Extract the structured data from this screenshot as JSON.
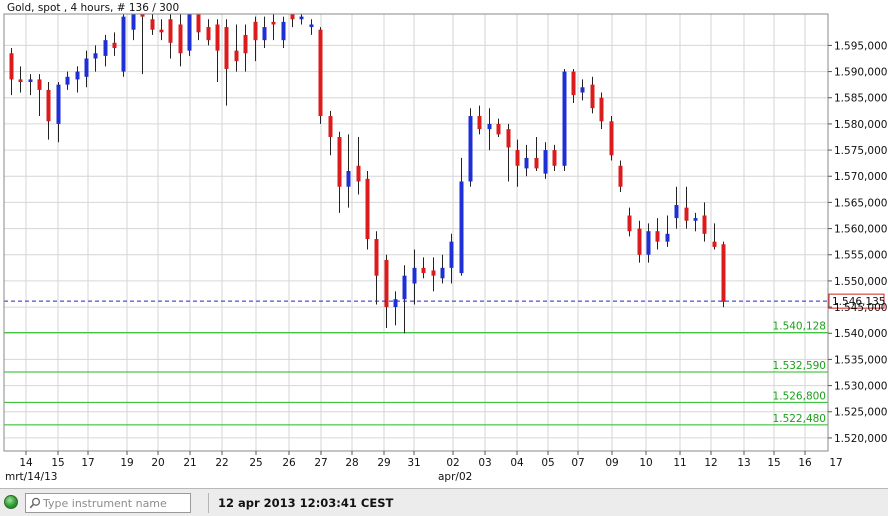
{
  "window": {
    "title": "Gold, spot , 4 hours, # 136 / 300"
  },
  "chart_data": {
    "type": "candlestick",
    "instrument": "Gold, spot",
    "timeframe": "4 hours",
    "ylim": [
      1.5175,
      1.601
    ],
    "y_ticks": [
      "1.520,000",
      "1.525,000",
      "1.530,000",
      "1.535,000",
      "1.540,000",
      "1.545,000",
      "1.550,000",
      "1.555,000",
      "1.560,000",
      "1.565,000",
      "1.570,000",
      "1.575,000",
      "1.580,000",
      "1.585,000",
      "1.590,000",
      "1.595,000"
    ],
    "y_tick_values": [
      1.52,
      1.525,
      1.53,
      1.535,
      1.54,
      1.545,
      1.55,
      1.555,
      1.56,
      1.565,
      1.57,
      1.575,
      1.58,
      1.585,
      1.59,
      1.595
    ],
    "x_tick_labels": [
      "14",
      "15",
      "17",
      "19",
      "20",
      "21",
      "22",
      "25",
      "26",
      "27",
      "28",
      "29",
      "31",
      "02",
      "03",
      "04",
      "05",
      "07",
      "09",
      "10",
      "11",
      "12",
      "13",
      "15",
      "16",
      "17"
    ],
    "x_secondary_labels": [
      "mrt/14/13",
      "apr/02"
    ],
    "grid": true,
    "current_price": {
      "label": "1.546,135",
      "value": 1.546135,
      "line_style": "dashed",
      "color": "#1c1cc8"
    },
    "horizontal_levels": [
      {
        "label": "1.540,128",
        "value": 1.540128
      },
      {
        "label": "1.532,590",
        "value": 1.53259
      },
      {
        "label": "1.526,800",
        "value": 1.5268
      },
      {
        "label": "1.522,480",
        "value": 1.52248
      }
    ],
    "candles": [
      {
        "o": 1.5935,
        "h": 1.5945,
        "l": 1.5855,
        "c": 1.5885
      },
      {
        "o": 1.5885,
        "h": 1.591,
        "l": 1.586,
        "c": 1.588
      },
      {
        "o": 1.588,
        "h": 1.5895,
        "l": 1.5855,
        "c": 1.5885
      },
      {
        "o": 1.5885,
        "h": 1.5895,
        "l": 1.5815,
        "c": 1.5865
      },
      {
        "o": 1.5865,
        "h": 1.588,
        "l": 1.577,
        "c": 1.5805
      },
      {
        "o": 1.58,
        "h": 1.588,
        "l": 1.5765,
        "c": 1.5875
      },
      {
        "o": 1.5875,
        "h": 1.59,
        "l": 1.5865,
        "c": 1.589
      },
      {
        "o": 1.5885,
        "h": 1.591,
        "l": 1.586,
        "c": 1.59
      },
      {
        "o": 1.589,
        "h": 1.594,
        "l": 1.587,
        "c": 1.5925
      },
      {
        "o": 1.5925,
        "h": 1.595,
        "l": 1.59,
        "c": 1.5935
      },
      {
        "o": 1.593,
        "h": 1.597,
        "l": 1.591,
        "c": 1.596
      },
      {
        "o": 1.5955,
        "h": 1.5975,
        "l": 1.593,
        "c": 1.5945
      },
      {
        "o": 1.59,
        "h": 1.601,
        "l": 1.589,
        "c": 1.6005
      },
      {
        "o": 1.598,
        "h": 1.601,
        "l": 1.596,
        "c": 1.601
      },
      {
        "o": 1.601,
        "h": 1.602,
        "l": 1.5895,
        "c": 1.6005
      },
      {
        "o": 1.6,
        "h": 1.601,
        "l": 1.597,
        "c": 1.598
      },
      {
        "o": 1.598,
        "h": 1.6,
        "l": 1.596,
        "c": 1.5975
      },
      {
        "o": 1.6,
        "h": 1.601,
        "l": 1.5925,
        "c": 1.5955
      },
      {
        "o": 1.599,
        "h": 1.601,
        "l": 1.591,
        "c": 1.5935
      },
      {
        "o": 1.594,
        "h": 1.601,
        "l": 1.593,
        "c": 1.601
      },
      {
        "o": 1.601,
        "h": 1.602,
        "l": 1.596,
        "c": 1.5975
      },
      {
        "o": 1.5985,
        "h": 1.6,
        "l": 1.595,
        "c": 1.596
      },
      {
        "o": 1.599,
        "h": 1.6,
        "l": 1.588,
        "c": 1.594
      },
      {
        "o": 1.5985,
        "h": 1.6,
        "l": 1.5835,
        "c": 1.5905
      },
      {
        "o": 1.594,
        "h": 1.599,
        "l": 1.59,
        "c": 1.592
      },
      {
        "o": 1.597,
        "h": 1.599,
        "l": 1.59,
        "c": 1.5935
      },
      {
        "o": 1.5995,
        "h": 1.6005,
        "l": 1.592,
        "c": 1.596
      },
      {
        "o": 1.596,
        "h": 1.6005,
        "l": 1.5945,
        "c": 1.5985
      },
      {
        "o": 1.5995,
        "h": 1.601,
        "l": 1.596,
        "c": 1.599
      },
      {
        "o": 1.596,
        "h": 1.6005,
        "l": 1.5945,
        "c": 1.5995
      },
      {
        "o": 1.601,
        "h": 1.602,
        "l": 1.5985,
        "c": 1.6
      },
      {
        "o": 1.6,
        "h": 1.601,
        "l": 1.599,
        "c": 1.6005
      },
      {
        "o": 1.5985,
        "h": 1.6,
        "l": 1.597,
        "c": 1.599
      },
      {
        "o": 1.598,
        "h": 1.5985,
        "l": 1.58,
        "c": 1.5815
      },
      {
        "o": 1.5815,
        "h": 1.5825,
        "l": 1.574,
        "c": 1.5775
      },
      {
        "o": 1.5775,
        "h": 1.5785,
        "l": 1.563,
        "c": 1.568
      },
      {
        "o": 1.568,
        "h": 1.578,
        "l": 1.564,
        "c": 1.571
      },
      {
        "o": 1.572,
        "h": 1.5775,
        "l": 1.5665,
        "c": 1.569
      },
      {
        "o": 1.5695,
        "h": 1.571,
        "l": 1.556,
        "c": 1.558
      },
      {
        "o": 1.558,
        "h": 1.5595,
        "l": 1.5455,
        "c": 1.551
      },
      {
        "o": 1.554,
        "h": 1.555,
        "l": 1.541,
        "c": 1.545
      },
      {
        "o": 1.545,
        "h": 1.548,
        "l": 1.5415,
        "c": 1.5465
      },
      {
        "o": 1.5465,
        "h": 1.553,
        "l": 1.54,
        "c": 1.551
      },
      {
        "o": 1.5495,
        "h": 1.556,
        "l": 1.5455,
        "c": 1.5525
      },
      {
        "o": 1.5525,
        "h": 1.5545,
        "l": 1.5505,
        "c": 1.5515
      },
      {
        "o": 1.552,
        "h": 1.5545,
        "l": 1.548,
        "c": 1.551
      },
      {
        "o": 1.5505,
        "h": 1.555,
        "l": 1.5495,
        "c": 1.5525
      },
      {
        "o": 1.5525,
        "h": 1.559,
        "l": 1.5495,
        "c": 1.5575
      },
      {
        "o": 1.5515,
        "h": 1.5735,
        "l": 1.551,
        "c": 1.569
      },
      {
        "o": 1.569,
        "h": 1.583,
        "l": 1.568,
        "c": 1.5815
      },
      {
        "o": 1.5815,
        "h": 1.5835,
        "l": 1.578,
        "c": 1.579
      },
      {
        "o": 1.579,
        "h": 1.583,
        "l": 1.575,
        "c": 1.58
      },
      {
        "o": 1.58,
        "h": 1.581,
        "l": 1.5775,
        "c": 1.578
      },
      {
        "o": 1.579,
        "h": 1.58,
        "l": 1.569,
        "c": 1.5755
      },
      {
        "o": 1.575,
        "h": 1.577,
        "l": 1.568,
        "c": 1.572
      },
      {
        "o": 1.5715,
        "h": 1.576,
        "l": 1.57,
        "c": 1.5735
      },
      {
        "o": 1.5735,
        "h": 1.5775,
        "l": 1.571,
        "c": 1.5715
      },
      {
        "o": 1.5705,
        "h": 1.5765,
        "l": 1.5695,
        "c": 1.575
      },
      {
        "o": 1.575,
        "h": 1.576,
        "l": 1.571,
        "c": 1.572
      },
      {
        "o": 1.572,
        "h": 1.5905,
        "l": 1.571,
        "c": 1.59
      },
      {
        "o": 1.59,
        "h": 1.5905,
        "l": 1.584,
        "c": 1.5855
      },
      {
        "o": 1.586,
        "h": 1.5885,
        "l": 1.5845,
        "c": 1.587
      },
      {
        "o": 1.5875,
        "h": 1.589,
        "l": 1.582,
        "c": 1.583
      },
      {
        "o": 1.585,
        "h": 1.586,
        "l": 1.579,
        "c": 1.5805
      },
      {
        "o": 1.5805,
        "h": 1.5815,
        "l": 1.573,
        "c": 1.574
      },
      {
        "o": 1.572,
        "h": 1.573,
        "l": 1.567,
        "c": 1.568
      },
      {
        "o": 1.5625,
        "h": 1.564,
        "l": 1.5585,
        "c": 1.5595
      },
      {
        "o": 1.56,
        "h": 1.5615,
        "l": 1.5535,
        "c": 1.555
      },
      {
        "o": 1.555,
        "h": 1.561,
        "l": 1.5535,
        "c": 1.5595
      },
      {
        "o": 1.5595,
        "h": 1.562,
        "l": 1.556,
        "c": 1.5575
      },
      {
        "o": 1.5575,
        "h": 1.5625,
        "l": 1.5565,
        "c": 1.559
      },
      {
        "o": 1.562,
        "h": 1.568,
        "l": 1.56,
        "c": 1.5645
      },
      {
        "o": 1.564,
        "h": 1.568,
        "l": 1.56,
        "c": 1.5615
      },
      {
        "o": 1.5615,
        "h": 1.563,
        "l": 1.5595,
        "c": 1.562
      },
      {
        "o": 1.5625,
        "h": 1.565,
        "l": 1.5575,
        "c": 1.559
      },
      {
        "o": 1.5575,
        "h": 1.561,
        "l": 1.556,
        "c": 1.5565
      },
      {
        "o": 1.557,
        "h": 1.5575,
        "l": 1.545,
        "c": 1.546
      }
    ]
  },
  "statusbar": {
    "search_placeholder": "Type instrument name",
    "datetime": "12 apr 2013 12:03:41 CEST"
  },
  "colors": {
    "bull": "#1f2fd6",
    "bear": "#dc1c1c",
    "grid": "#d6d6d6",
    "level": "#22bb22",
    "level_text": "#1aa01a",
    "current_line": "#2424c8",
    "current_label_border": "#d02020"
  }
}
